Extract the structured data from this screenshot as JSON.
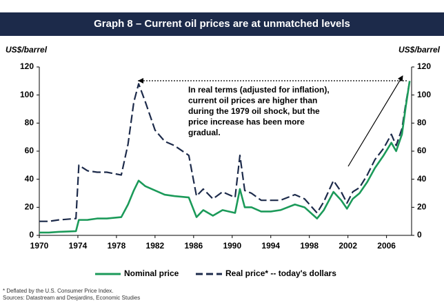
{
  "chart_data": {
    "type": "line",
    "title": "Graph 8 – Current oil prices are at unmatched levels",
    "y_label": "US$/barrel",
    "y2_label": "US$/barrel",
    "annotation": [
      "In real terms (adjusted for inflation),",
      "current oil prices are higher than",
      "during the 1979 oil shock, but the",
      "price increase has been more",
      "gradual."
    ],
    "footnotes": [
      "* Deflated by the U.S. Consumer Price Index.",
      "Sources: Datastream and Desjardins, Economic Studies"
    ],
    "xlim": [
      1970,
      2008.6
    ],
    "xticks": [
      1970,
      1974,
      1978,
      1982,
      1986,
      1990,
      1994,
      1998,
      2002,
      2006
    ],
    "ylim": [
      0,
      120
    ],
    "yticks": [
      0,
      20,
      40,
      60,
      80,
      100,
      120
    ],
    "y2lim": [
      0,
      120
    ],
    "y2ticks": [
      0,
      20,
      40,
      60,
      80,
      100,
      120
    ],
    "x": [
      1970,
      1971,
      1972,
      1973.8,
      1974.1,
      1975,
      1976,
      1977,
      1978.5,
      1979.2,
      1979.8,
      1980.3,
      1981,
      1982,
      1983,
      1984,
      1985.5,
      1986.3,
      1987,
      1988,
      1989,
      1990.3,
      1990.8,
      1991.3,
      1992,
      1993,
      1994,
      1995,
      1996.5,
      1997.5,
      1998.8,
      1999.5,
      2000.5,
      2001.3,
      2001.9,
      2002.5,
      2003.2,
      2004,
      2004.8,
      2005.7,
      2006.5,
      2007,
      2007.6,
      2008,
      2008.4
    ],
    "series": [
      {
        "name": "Nominal price",
        "color": "#1b9a59",
        "dash": false,
        "values": [
          2,
          2,
          2.5,
          3,
          11,
          11,
          12,
          12,
          13,
          22,
          32,
          39,
          35,
          32,
          29,
          28,
          27,
          13,
          18,
          14,
          18,
          16,
          33,
          20,
          20,
          17,
          17,
          18,
          22,
          20,
          12,
          18,
          31,
          25,
          19,
          26,
          30,
          38,
          48,
          57,
          66,
          60,
          72,
          92,
          110
        ]
      },
      {
        "name": "Real price* -- today's dollars",
        "color": "#1c2a4a",
        "dash": true,
        "values": [
          10,
          10,
          11,
          12,
          50,
          46,
          45,
          45,
          43,
          65,
          95,
          108,
          95,
          75,
          67,
          64,
          57,
          28,
          33,
          26,
          31,
          27,
          57,
          32,
          30,
          25,
          25,
          25,
          29,
          26,
          16,
          24,
          39,
          31,
          23,
          31,
          34,
          43,
          54,
          62,
          72,
          64,
          76,
          94,
          110
        ]
      }
    ]
  }
}
